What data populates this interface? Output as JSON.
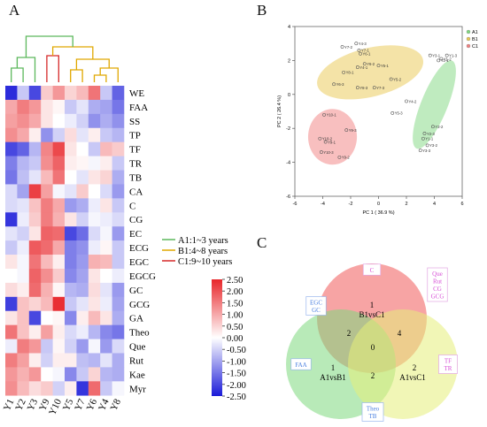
{
  "panels": {
    "a": "A",
    "b": "B",
    "c": "C"
  },
  "heatmap": {
    "columns": [
      "Y1",
      "Y2",
      "Y3",
      "Y9",
      "Y10",
      "Y5",
      "Y7",
      "Y6",
      "Y4",
      "Y8"
    ],
    "rows": [
      "WE",
      "FAA",
      "SS",
      "TP",
      "TF",
      "TR",
      "TB",
      "CA",
      "C",
      "CG",
      "EC",
      "ECG",
      "EGC",
      "EGCG",
      "GC",
      "GCG",
      "GA",
      "Theo",
      "Que",
      "Rut",
      "Kae",
      "Myr"
    ],
    "values": [
      [
        -2.3,
        -0.6,
        -2.0,
        0.6,
        1.2,
        0.5,
        0.8,
        1.6,
        -0.6,
        -1.7
      ],
      [
        1.0,
        1.5,
        1.2,
        0.3,
        0.1,
        -0.6,
        -0.3,
        -0.9,
        -1.0,
        -1.5
      ],
      [
        1.1,
        1.3,
        1.0,
        0.3,
        0.0,
        -0.2,
        -0.5,
        -1.2,
        -0.9,
        -1.2
      ],
      [
        1.3,
        1.0,
        0.2,
        -1.2,
        -0.5,
        0.4,
        -0.3,
        0.2,
        -0.6,
        -0.8
      ],
      [
        -2.0,
        -1.7,
        -0.8,
        1.4,
        2.1,
        0.3,
        0.0,
        -0.6,
        0.8,
        0.6
      ],
      [
        -1.4,
        -0.8,
        -0.6,
        1.3,
        1.8,
        0.2,
        0.1,
        -0.1,
        0.2,
        -0.6
      ],
      [
        -1.5,
        -0.7,
        -0.3,
        0.8,
        1.6,
        0.0,
        -0.3,
        0.3,
        0.5,
        -0.9
      ],
      [
        -0.4,
        -1.0,
        2.2,
        1.1,
        -0.1,
        -0.3,
        0.6,
        0.0,
        -0.4,
        -1.1
      ],
      [
        -0.4,
        -0.3,
        0.7,
        1.5,
        1.0,
        -1.1,
        -0.9,
        -0.2,
        0.3,
        -0.6
      ],
      [
        -2.2,
        -0.2,
        0.6,
        1.5,
        0.9,
        0.3,
        -0.5,
        -0.1,
        -0.2,
        -0.4
      ],
      [
        -0.3,
        -0.5,
        0.3,
        1.8,
        1.7,
        -2.0,
        -1.6,
        -0.4,
        -0.1,
        -1.1
      ],
      [
        -0.6,
        -0.2,
        1.9,
        1.7,
        1.0,
        -1.4,
        -1.2,
        -0.2,
        0.1,
        -0.6
      ],
      [
        0.3,
        -0.1,
        1.6,
        0.8,
        0.2,
        -1.4,
        -1.1,
        0.9,
        0.8,
        -0.6
      ],
      [
        0.0,
        -0.1,
        1.8,
        1.3,
        0.6,
        -1.3,
        -1.0,
        0.3,
        0.0,
        -0.2
      ],
      [
        0.4,
        0.2,
        1.7,
        0.9,
        0.1,
        -0.8,
        -0.9,
        0.4,
        -0.3,
        -1.1
      ],
      [
        -2.1,
        0.7,
        0.5,
        0.8,
        2.4,
        -0.6,
        -0.3,
        0.3,
        -0.2,
        -1.0
      ],
      [
        0.3,
        0.7,
        -2.0,
        0.0,
        0.1,
        -1.3,
        0.2,
        0.8,
        0.3,
        -0.9
      ],
      [
        1.6,
        0.7,
        0.2,
        1.1,
        0.2,
        -0.4,
        -0.2,
        -0.8,
        -1.3,
        -1.5
      ],
      [
        -0.2,
        1.5,
        1.2,
        -0.6,
        0.1,
        -0.5,
        -1.1,
        -0.1,
        -1.1,
        -0.4
      ],
      [
        1.5,
        1.1,
        0.2,
        -0.5,
        0.2,
        0.2,
        -0.7,
        -0.8,
        -0.3,
        -0.9
      ],
      [
        1.2,
        0.9,
        1.2,
        0.0,
        -0.1,
        -1.3,
        -0.6,
        0.5,
        -0.8,
        -0.9
      ],
      [
        1.3,
        0.8,
        0.4,
        0.6,
        -0.5,
        0.2,
        -2.2,
        1.7,
        -0.6,
        -0.1
      ]
    ],
    "group_colors": [
      "#5cb85c",
      "#5cb85c",
      "#5cb85c",
      "#d62828",
      "#d62828",
      "#e0a800",
      "#e0a800",
      "#e0a800",
      "#e0a800",
      "#e0a800"
    ],
    "legend": [
      {
        "label": "A1:1~3 years",
        "color": "#5cb85c"
      },
      {
        "label": "B1:4~8 years",
        "color": "#e0a800"
      },
      {
        "label": "C1:9~10 years",
        "color": "#d62828"
      }
    ],
    "colorbar": {
      "ticks": [
        "2.50",
        "2.00",
        "1.50",
        "1.00",
        "0.50",
        "0.00",
        "-0.50",
        "-1.00",
        "-1.50",
        "-2.00",
        "-2.50"
      ],
      "range": [
        -2.5,
        2.5
      ],
      "high": "#e8262a",
      "mid": "#ffffff",
      "low": "#1a1ad8"
    }
  },
  "chart_data": [
    {
      "type": "heatmap",
      "x": [
        "Y1",
        "Y2",
        "Y3",
        "Y9",
        "Y10",
        "Y5",
        "Y7",
        "Y6",
        "Y4",
        "Y8"
      ],
      "y": [
        "WE",
        "FAA",
        "SS",
        "TP",
        "TF",
        "TR",
        "TB",
        "CA",
        "C",
        "CG",
        "EC",
        "ECG",
        "EGC",
        "EGCG",
        "GC",
        "GCG",
        "GA",
        "Theo",
        "Que",
        "Rut",
        "Kae",
        "Myr"
      ],
      "zlim": [
        -2.5,
        2.5
      ]
    },
    {
      "type": "scatter",
      "xlabel": "PC 1 ( 36.9 %)",
      "ylabel": "PC 2 ( 26.4 %)",
      "xlim": [
        -6,
        6
      ],
      "ylim": [
        -6,
        4
      ],
      "xticks": [
        "-6",
        "-4",
        "-2",
        "0",
        "2",
        "4",
        "6"
      ],
      "yticks": [
        "4",
        "2",
        "0",
        "-2",
        "-4",
        "-6"
      ],
      "legend_position": "top-right",
      "series": [
        {
          "name": "A1",
          "color": "#7fd87f",
          "points": [
            {
              "label": "Y3-1",
              "x": 3.7,
              "y": 2.3
            },
            {
              "label": "Y1-3",
              "x": 4.9,
              "y": 2.3
            },
            {
              "label": "Y1-2",
              "x": 4.5,
              "y": 2.1
            },
            {
              "label": "Y2-1",
              "x": 4.3,
              "y": 2.0
            },
            {
              "label": "Y2-2",
              "x": 3.9,
              "y": -1.9
            },
            {
              "label": "Y2-3",
              "x": 3.3,
              "y": -2.3
            },
            {
              "label": "Y1-1",
              "x": 3.2,
              "y": -2.6
            },
            {
              "label": "Y3-2",
              "x": 3.5,
              "y": -3.0
            },
            {
              "label": "Y3-3",
              "x": 3.0,
              "y": -3.3
            }
          ]
        },
        {
          "name": "B1",
          "color": "#e9c84f",
          "points": [
            {
              "label": "Y7-2",
              "x": -2.6,
              "y": 2.8
            },
            {
              "label": "Y4-3",
              "x": -1.6,
              "y": 3.0
            },
            {
              "label": "Y7-1",
              "x": -1.4,
              "y": 2.6
            },
            {
              "label": "Y6-1",
              "x": -1.3,
              "y": 2.4
            },
            {
              "label": "Y6-2",
              "x": -1.0,
              "y": 1.8
            },
            {
              "label": "Y4-1",
              "x": -1.5,
              "y": 1.6
            },
            {
              "label": "Y5-1",
              "x": 0.0,
              "y": 1.7
            },
            {
              "label": "Y8-1",
              "x": -2.5,
              "y": 1.3
            },
            {
              "label": "Y5-2",
              "x": 0.9,
              "y": 0.9
            },
            {
              "label": "Y6-3",
              "x": -3.2,
              "y": 0.6
            },
            {
              "label": "Y8-3",
              "x": -1.5,
              "y": 0.4
            },
            {
              "label": "Y7-3",
              "x": -0.3,
              "y": 0.4
            },
            {
              "label": "Y4-2",
              "x": 2.0,
              "y": -0.4
            },
            {
              "label": "Y5-3",
              "x": 1.0,
              "y": -1.1
            }
          ]
        },
        {
          "name": "C1",
          "color": "#f27f7f",
          "points": [
            {
              "label": "Y10-1",
              "x": -3.9,
              "y": -1.2
            },
            {
              "label": "Y9-3",
              "x": -2.3,
              "y": -2.1
            },
            {
              "label": "Y10-2",
              "x": -4.2,
              "y": -2.6
            },
            {
              "label": "Y9-1",
              "x": -3.8,
              "y": -2.8
            },
            {
              "label": "Y10-3",
              "x": -4.1,
              "y": -3.4
            },
            {
              "label": "Y9-2",
              "x": -2.8,
              "y": -3.7
            }
          ]
        }
      ]
    },
    {
      "type": "venn",
      "sets": [
        {
          "name": "B1vsC1",
          "color": "#f05a5a"
        },
        {
          "name": "A1vsB1",
          "color": "#7ed87e"
        },
        {
          "name": "A1vsC1",
          "color": "#e6ee7a"
        }
      ],
      "regions": {
        "B1vsC1_only": 1,
        "A1vsB1_only": 1,
        "A1vsC1_only": 2,
        "A1vsB1_B1vsC1": 2,
        "B1vsC1_A1vsC1": 4,
        "A1vsB1_A1vsC1": 2,
        "all": 0
      },
      "annotations": {
        "B1vsC1_only": [
          "C"
        ],
        "A1vsB1_B1vsC1": [
          "EGC",
          "GC"
        ],
        "B1vsC1_A1vsC1": [
          "Que",
          "Rut",
          "CG",
          "GCG"
        ],
        "A1vsB1_only": [
          "FAA"
        ],
        "A1vsC1_only": [
          "TF",
          "TR"
        ],
        "A1vsB1_A1vsC1": [
          "Theo",
          "TB"
        ]
      }
    }
  ]
}
